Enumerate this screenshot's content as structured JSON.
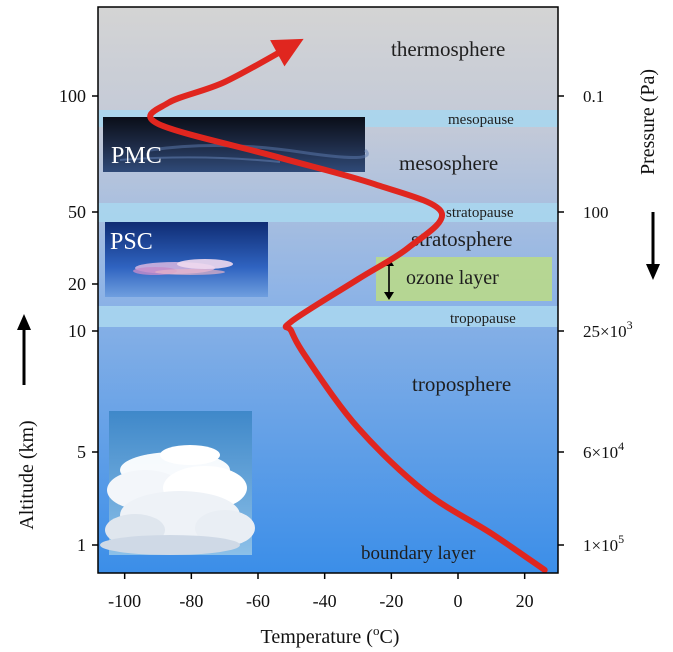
{
  "chart_data": {
    "type": "line",
    "series": [
      {
        "points": [
          {
            "temperature": 26,
            "altitude": 0
          },
          {
            "temperature": 10,
            "altitude": 1.5
          },
          {
            "temperature": -10,
            "altitude": 3.3
          },
          {
            "temperature": -30,
            "altitude": 6
          },
          {
            "temperature": -45,
            "altitude": 8.8
          },
          {
            "temperature": -50,
            "altitude": 10
          },
          {
            "temperature": -50,
            "altitude": 12
          },
          {
            "temperature": -30,
            "altitude": 22
          },
          {
            "temperature": -15,
            "altitude": 35
          },
          {
            "temperature": -5,
            "altitude": 50
          },
          {
            "temperature": -25,
            "altitude": 62
          },
          {
            "temperature": -55,
            "altitude": 74
          },
          {
            "temperature": -90,
            "altitude": 88
          },
          {
            "temperature": -87,
            "altitude": 97
          },
          {
            "temperature": -70,
            "altitude": 105
          },
          {
            "temperature": -50,
            "altitude": 118
          }
        ]
      }
    ],
    "x_axis": {
      "label": "Temperature (",
      "label_sup": "o",
      "label_end": "C)",
      "ticks": [
        "-100",
        "-80",
        "-60",
        "-40",
        "-20",
        "0",
        "20"
      ],
      "tick_values": [
        -100,
        -80,
        -60,
        -40,
        -20,
        0,
        20
      ],
      "range": [
        -108,
        30
      ]
    },
    "y_axis_left": {
      "label": "Altitude (km)",
      "ticks": [
        "1",
        "5",
        "10",
        "20",
        "50",
        "100"
      ],
      "tick_values": [
        1,
        5,
        10,
        20,
        50,
        100
      ]
    },
    "y_axis_right": {
      "label": "Pressure (Pa)",
      "ticks": [
        {
          "base": "0.1",
          "exp": "",
          "altitude": 100
        },
        {
          "base": "100",
          "exp": "",
          "altitude": 50
        },
        {
          "base": "25×10",
          "exp": "3",
          "altitude": 10
        },
        {
          "base": "6×10",
          "exp": "4",
          "altitude": 5
        },
        {
          "base": "1×10",
          "exp": "5",
          "altitude": 1
        }
      ]
    },
    "layers": {
      "thermosphere": "thermosphere",
      "mesopause": "mesopause",
      "mesosphere": "mesosphere",
      "stratopause": "stratopause",
      "stratosphere": "stratosphere",
      "ozone": "ozone layer",
      "tropopause": "tropopause",
      "troposphere": "troposphere",
      "boundary": "boundary layer"
    },
    "photos": {
      "pmc": "PMC",
      "psc": "PSC"
    },
    "colors": {
      "profile": "#e0261f",
      "sky_top": "#d3d3d3",
      "sky_bottom": "#3d8fe6",
      "pause_band": "#a9d6ee",
      "ozone_fill": "#b8d98c"
    }
  }
}
